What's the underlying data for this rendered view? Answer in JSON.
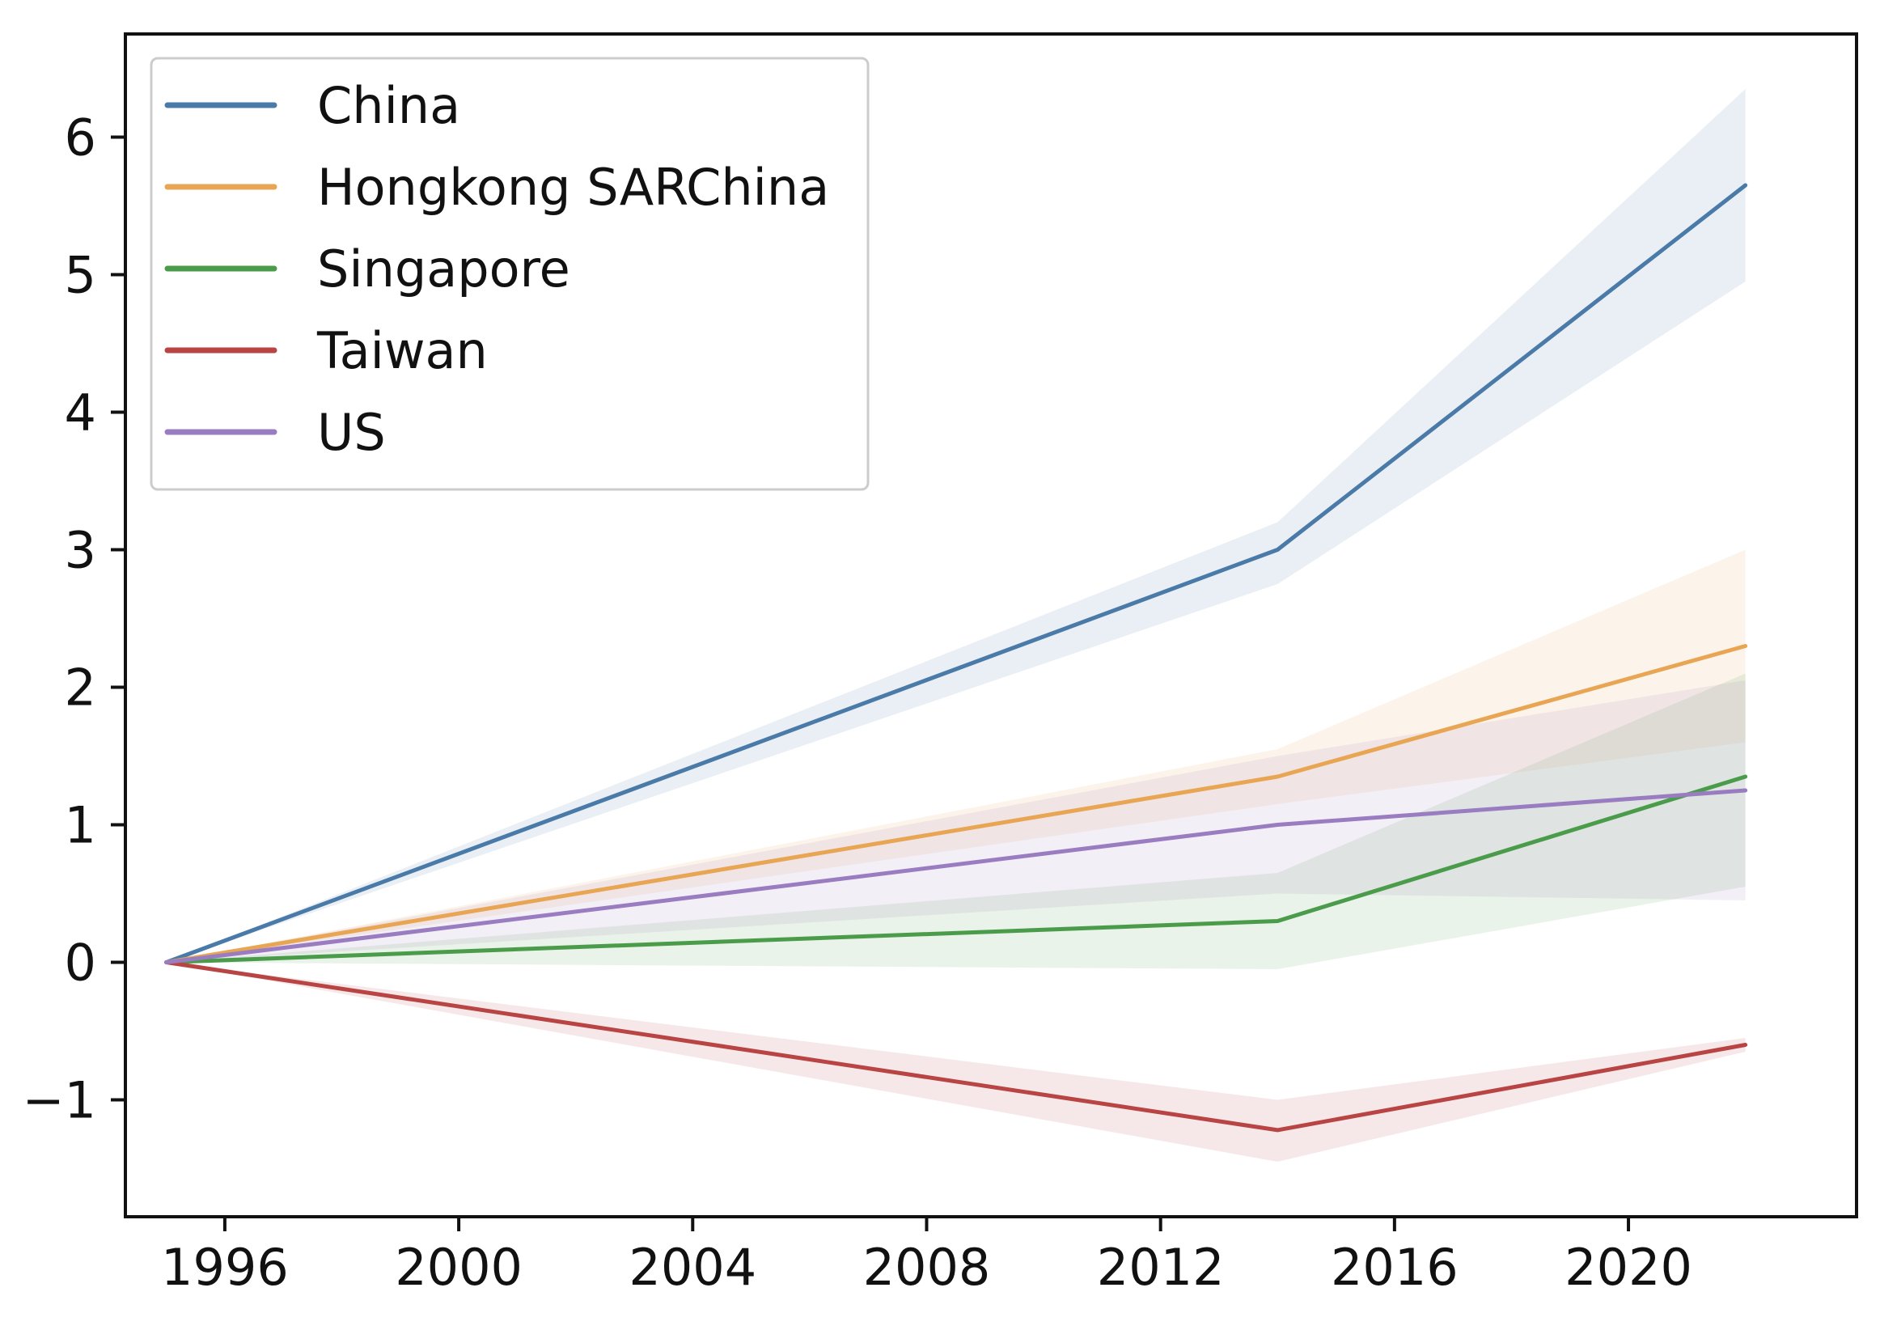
{
  "chart_data": {
    "type": "line",
    "title": "",
    "xlabel": "",
    "ylabel": "",
    "xlim": [
      1994.3,
      2023.9
    ],
    "ylim": [
      -1.85,
      6.75
    ],
    "x_ticks": [
      1996,
      2000,
      2004,
      2008,
      2012,
      2016,
      2020
    ],
    "x_tick_labels": [
      "1996",
      "2000",
      "2004",
      "2008",
      "2012",
      "2016",
      "2020"
    ],
    "y_ticks": [
      -1,
      0,
      1,
      2,
      3,
      4,
      5,
      6
    ],
    "y_tick_labels": [
      "−1",
      "0",
      "1",
      "2",
      "3",
      "4",
      "5",
      "6"
    ],
    "grid": false,
    "legend_position": "top-left",
    "x": [
      1995,
      2014,
      2022
    ],
    "series": [
      {
        "name": "China",
        "color": "#4a7aa8",
        "values": [
          0,
          3.0,
          5.65
        ],
        "band_lower": [
          0,
          2.75,
          4.95
        ],
        "band_upper": [
          0,
          3.2,
          6.35
        ]
      },
      {
        "name": "Hongkong SARChina",
        "color": "#e8a654",
        "values": [
          0,
          1.35,
          2.3
        ],
        "band_lower": [
          0,
          1.15,
          1.6
        ],
        "band_upper": [
          0,
          1.55,
          3.0
        ]
      },
      {
        "name": "Singapore",
        "color": "#4a9c4a",
        "values": [
          0,
          0.3,
          1.35
        ],
        "band_lower": [
          0,
          -0.05,
          0.55
        ],
        "band_upper": [
          0,
          0.65,
          2.1
        ]
      },
      {
        "name": "Taiwan",
        "color": "#b84444",
        "values": [
          0,
          -1.22,
          -0.6
        ],
        "band_lower": [
          0,
          -1.45,
          -0.65
        ],
        "band_upper": [
          0,
          -1.0,
          -0.55
        ]
      },
      {
        "name": "US",
        "color": "#9a7cc0",
        "values": [
          0,
          1.0,
          1.25
        ],
        "band_lower": [
          0,
          0.5,
          0.45
        ],
        "band_upper": [
          0,
          1.5,
          2.05
        ]
      }
    ]
  }
}
